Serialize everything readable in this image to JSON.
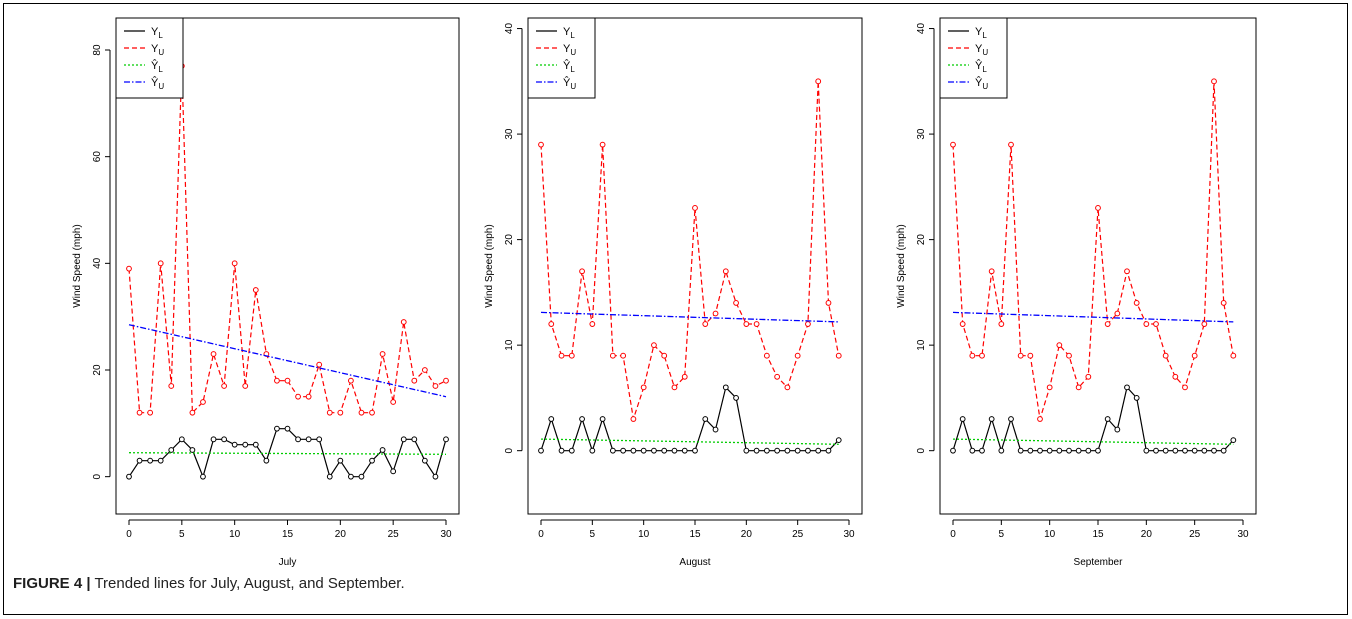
{
  "caption": {
    "label": "FIGURE 4 |",
    "text": "Trended lines for July, August, and September."
  },
  "colors": {
    "Y_L": "#000000",
    "Y_U": "#ff0000",
    "Yhat_L": "#00cc00",
    "Yhat_U": "#0000ff"
  },
  "chart_data": [
    {
      "type": "line",
      "xlabel": "July",
      "ylabel": "Wind Speed (mph)",
      "xlim": [
        0,
        30
      ],
      "ylim": [
        -7,
        86
      ],
      "xticks": [
        0,
        5,
        10,
        15,
        20,
        25,
        30
      ],
      "yticks": [
        0,
        20,
        40,
        60,
        80
      ],
      "legend": {
        "position": "top-left",
        "entries": [
          "Y_L",
          "Y_U",
          "Ŷ_L",
          "Ŷ_U"
        ]
      },
      "grid": false,
      "series": [
        {
          "name": "Y_L",
          "style": "solid-points",
          "x": [
            0,
            1,
            2,
            3,
            4,
            5,
            6,
            7,
            8,
            9,
            10,
            11,
            12,
            13,
            14,
            15,
            16,
            17,
            18,
            19,
            20,
            21,
            22,
            23,
            24,
            25,
            26,
            27,
            28,
            29,
            30
          ],
          "y": [
            0,
            3,
            3,
            3,
            5,
            7,
            5,
            0,
            7,
            7,
            6,
            6,
            6,
            3,
            9,
            9,
            7,
            7,
            7,
            0,
            3,
            0,
            0,
            3,
            5,
            1,
            7,
            7,
            3,
            0,
            7
          ]
        },
        {
          "name": "Y_U",
          "style": "dashed-points",
          "x": [
            0,
            1,
            2,
            3,
            4,
            5,
            6,
            7,
            8,
            9,
            10,
            11,
            12,
            13,
            14,
            15,
            16,
            17,
            18,
            19,
            20,
            21,
            22,
            23,
            24,
            25,
            26,
            27,
            28,
            29,
            30
          ],
          "y": [
            39,
            12,
            12,
            40,
            17,
            77,
            12,
            14,
            23,
            17,
            40,
            17,
            35,
            23,
            18,
            18,
            15,
            15,
            21,
            12,
            12,
            18,
            12,
            12,
            23,
            14,
            29,
            18,
            20,
            17,
            18
          ]
        },
        {
          "name": "Ŷ_L",
          "style": "dotted",
          "x": [
            0,
            30
          ],
          "y": [
            4.5,
            4.2
          ]
        },
        {
          "name": "Ŷ_U",
          "style": "dashdot",
          "x": [
            0,
            30
          ],
          "y": [
            28.5,
            15
          ]
        }
      ]
    },
    {
      "type": "line",
      "xlabel": "August",
      "ylabel": "Wind Speed (mph)",
      "xlim": [
        0,
        30
      ],
      "ylim": [
        -6,
        41
      ],
      "xticks": [
        0,
        5,
        10,
        15,
        20,
        25,
        30
      ],
      "yticks": [
        0,
        10,
        20,
        30,
        40
      ],
      "legend": {
        "position": "top-left",
        "entries": [
          "Y_L",
          "Y_U",
          "Ŷ_L",
          "Ŷ_U"
        ]
      },
      "grid": false,
      "series": [
        {
          "name": "Y_L",
          "style": "solid-points",
          "x": [
            0,
            1,
            2,
            3,
            4,
            5,
            6,
            7,
            8,
            9,
            10,
            11,
            12,
            13,
            14,
            15,
            16,
            17,
            18,
            19,
            20,
            21,
            22,
            23,
            24,
            25,
            26,
            27,
            28,
            29
          ],
          "y": [
            0,
            3,
            0,
            0,
            3,
            0,
            3,
            0,
            0,
            0,
            0,
            0,
            0,
            0,
            0,
            0,
            3,
            2,
            6,
            5,
            0,
            0,
            0,
            0,
            0,
            0,
            0,
            0,
            0,
            1
          ]
        },
        {
          "name": "Y_U",
          "style": "dashed-points",
          "x": [
            0,
            1,
            2,
            3,
            4,
            5,
            6,
            7,
            8,
            9,
            10,
            11,
            12,
            13,
            14,
            15,
            16,
            17,
            18,
            19,
            20,
            21,
            22,
            23,
            24,
            25,
            26,
            27,
            28,
            29
          ],
          "y": [
            29,
            12,
            9,
            9,
            17,
            12,
            29,
            9,
            9,
            3,
            6,
            10,
            9,
            6,
            7,
            23,
            12,
            13,
            17,
            14,
            12,
            12,
            9,
            7,
            6,
            9,
            12,
            35,
            14,
            9
          ]
        },
        {
          "name": "Ŷ_L",
          "style": "dotted",
          "x": [
            0,
            29
          ],
          "y": [
            1.1,
            0.6
          ]
        },
        {
          "name": "Ŷ_U",
          "style": "dashdot",
          "x": [
            0,
            29
          ],
          "y": [
            13.1,
            12.2
          ]
        }
      ]
    },
    {
      "type": "line",
      "xlabel": "September",
      "ylabel": "Wind Speed (mph)",
      "xlim": [
        0,
        30
      ],
      "ylim": [
        -6,
        41
      ],
      "xticks": [
        0,
        5,
        10,
        15,
        20,
        25,
        30
      ],
      "yticks": [
        0,
        10,
        20,
        30,
        40
      ],
      "legend": {
        "position": "top-left",
        "entries": [
          "Y_L",
          "Y_U",
          "Ŷ_L",
          "Ŷ_U"
        ]
      },
      "grid": false,
      "series": [
        {
          "name": "Y_L",
          "style": "solid-points",
          "x": [
            0,
            1,
            2,
            3,
            4,
            5,
            6,
            7,
            8,
            9,
            10,
            11,
            12,
            13,
            14,
            15,
            16,
            17,
            18,
            19,
            20,
            21,
            22,
            23,
            24,
            25,
            26,
            27,
            28,
            29
          ],
          "y": [
            0,
            3,
            0,
            0,
            3,
            0,
            3,
            0,
            0,
            0,
            0,
            0,
            0,
            0,
            0,
            0,
            3,
            2,
            6,
            5,
            0,
            0,
            0,
            0,
            0,
            0,
            0,
            0,
            0,
            1
          ]
        },
        {
          "name": "Y_U",
          "style": "dashed-points",
          "x": [
            0,
            1,
            2,
            3,
            4,
            5,
            6,
            7,
            8,
            9,
            10,
            11,
            12,
            13,
            14,
            15,
            16,
            17,
            18,
            19,
            20,
            21,
            22,
            23,
            24,
            25,
            26,
            27,
            28,
            29
          ],
          "y": [
            29,
            12,
            9,
            9,
            17,
            12,
            29,
            9,
            9,
            3,
            6,
            10,
            9,
            6,
            7,
            23,
            12,
            13,
            17,
            14,
            12,
            12,
            9,
            7,
            6,
            9,
            12,
            35,
            14,
            9
          ]
        },
        {
          "name": "Ŷ_L",
          "style": "dotted",
          "x": [
            0,
            29
          ],
          "y": [
            1.1,
            0.6
          ]
        },
        {
          "name": "Ŷ_U",
          "style": "dashdot",
          "x": [
            0,
            29
          ],
          "y": [
            13.1,
            12.2
          ]
        }
      ]
    }
  ]
}
